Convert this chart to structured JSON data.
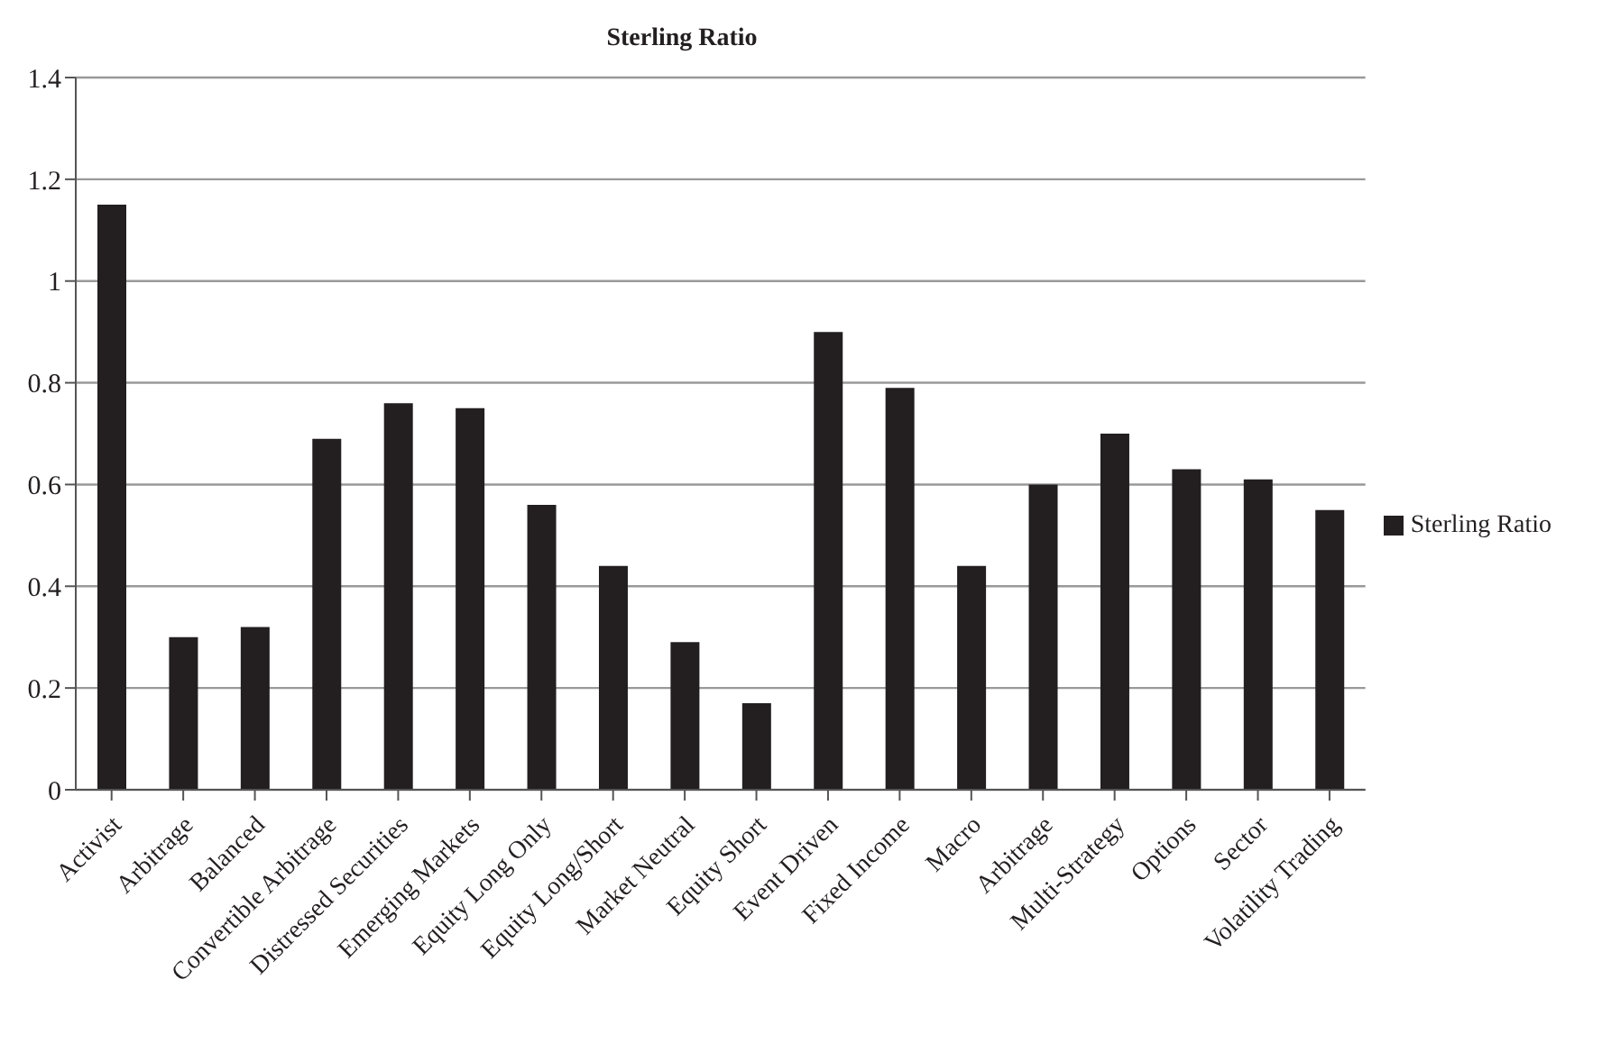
{
  "chart_data": {
    "type": "bar",
    "title": "Sterling Ratio",
    "categories": [
      "Activist",
      "Arbitrage",
      "Balanced",
      "Convertible Arbitrage",
      "Distressed Securities",
      "Emerging Markets",
      "Equity Long Only",
      "Equity Long/Short",
      "Market Neutral",
      "Equity Short",
      "Event Driven",
      "Fixed Income",
      "Macro",
      "Arbitrage",
      "Multi-Strategy",
      "Options",
      "Sector",
      "Volatility Trading"
    ],
    "series": [
      {
        "name": "Sterling Ratio",
        "color": "#231f20",
        "values": [
          1.15,
          0.3,
          0.32,
          0.69,
          0.76,
          0.75,
          0.56,
          0.44,
          0.29,
          0.17,
          0.9,
          0.79,
          0.44,
          0.6,
          0.7,
          0.63,
          0.61,
          0.55
        ]
      }
    ],
    "ylim": [
      0,
      1.4
    ],
    "yticks": [
      0,
      0.2,
      0.4,
      0.6,
      0.8,
      1,
      1.2,
      1.4
    ],
    "grid": "y",
    "legend": "right"
  }
}
